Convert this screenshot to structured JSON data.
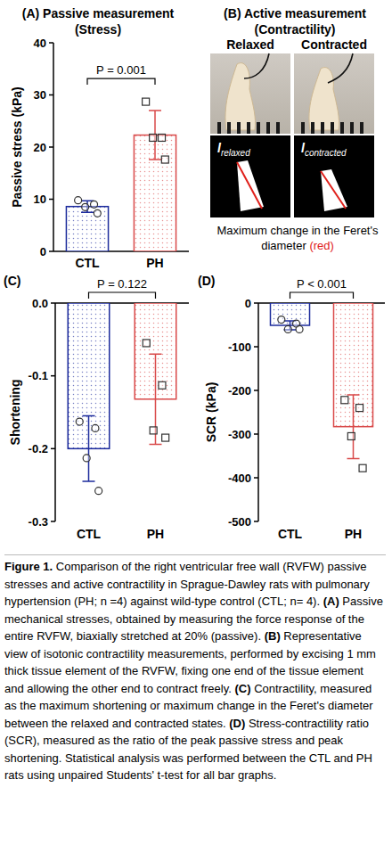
{
  "chart_data": [
    {
      "type": "bar",
      "panel": "(A)",
      "title": "Passive measurement (Stress)",
      "categories": [
        "CTL",
        "PH"
      ],
      "values": [
        8.6,
        22.3
      ],
      "errors": [
        1.1,
        4.7
      ],
      "points": [
        {
          "marker": "circle",
          "values": [
            9.8,
            9.0,
            8.5,
            7.3
          ]
        },
        {
          "marker": "square",
          "values": [
            28.7,
            21.8,
            21.8,
            17.6
          ]
        }
      ],
      "colors": [
        "#1c2b9c",
        "#d94a4a"
      ],
      "y_label": "Passive stress (kPa)",
      "ylim": [
        0,
        40
      ],
      "yticks": [
        0,
        10,
        20,
        30,
        40
      ],
      "p_value": "P = 0.001"
    },
    {
      "type": "bar",
      "panel": "(C)",
      "categories": [
        "CTL",
        "PH"
      ],
      "values": [
        -0.2,
        -0.132
      ],
      "errors": [
        0.045,
        0.062
      ],
      "points": [
        {
          "marker": "circle",
          "values": [
            -0.163,
            -0.172,
            -0.213,
            -0.258
          ]
        },
        {
          "marker": "square",
          "values": [
            -0.055,
            -0.113,
            -0.175,
            -0.185
          ]
        }
      ],
      "colors": [
        "#1c2b9c",
        "#d94a4a"
      ],
      "y_label": "Shortening",
      "ylim": [
        -0.3,
        0
      ],
      "yticks": [
        -0.3,
        -0.2,
        -0.1,
        {
          "value": 0,
          "label": "0.0"
        }
      ],
      "p_value": "P = 0.122"
    },
    {
      "type": "bar",
      "panel": "(D)",
      "categories": [
        "CTL",
        "PH"
      ],
      "values": [
        -51,
        -283
      ],
      "errors": [
        10,
        73
      ],
      "points": [
        {
          "marker": "circle",
          "values": [
            -38,
            -47,
            -60,
            -60
          ]
        },
        {
          "marker": "square",
          "values": [
            -222,
            -240,
            -305,
            -378
          ]
        }
      ],
      "colors": [
        "#1c2b9c",
        "#d94a4a"
      ],
      "y_label": "SCR (kPa)",
      "ylim": [
        -500,
        0
      ],
      "yticks": [
        -500,
        -400,
        -300,
        -200,
        -100,
        0
      ],
      "p_value": "P < 0.001"
    }
  ],
  "panel_b": {
    "panel": "(B)",
    "title": "Active measurement (Contractility)",
    "labels": [
      "Relaxed",
      "Contracted"
    ],
    "length_symbol": "l",
    "length_subscripts": [
      "relaxed",
      "contracted"
    ],
    "note": "Maximum change in the Feret's diameter",
    "note_highlight": "(red)"
  },
  "caption": {
    "label": "Figure 1.",
    "text": "Comparison of the right ventricular free wall (RVFW) passive stresses and active contractility in Sprague-Dawley rats with pulmonary hypertension (PH; n =4) against wild-type control (CTL; n= 4).",
    "items": [
      {
        "tag": "(A)",
        "text": "Passive mechanical stresses, obtained by measuring the force response of the entire RVFW, biaxially stretched at 20% (passive)."
      },
      {
        "tag": "(B)",
        "text": "Representative view of isotonic contractility measurements, performed by excising 1 mm thick tissue element of the RVFW, fixing one end of the tissue element and allowing the other end to contract freely."
      },
      {
        "tag": "(C)",
        "text": "Contractility, measured as the maximum shortening or maximum change in the Feret's diameter between the relaxed and contracted states."
      },
      {
        "tag": "(D)",
        "text": "Stress-contractility ratio (SCR), measured as the ratio of the peak passive stress and peak shortening. Statistical analysis was performed between the CTL and PH rats using unpaired Students' t-test for all bar graphs."
      }
    ]
  }
}
